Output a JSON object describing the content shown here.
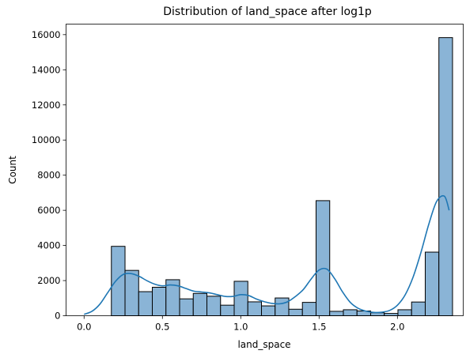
{
  "chart_data": {
    "type": "bar",
    "title": "Distribution of land_space after log1p",
    "xlabel": "land_space",
    "ylabel": "Count",
    "xlim": [
      -0.115,
      2.42
    ],
    "ylim": [
      0,
      16600
    ],
    "xticks": [
      0.0,
      0.5,
      1.0,
      1.5,
      2.0
    ],
    "xtick_labels": [
      "0.0",
      "0.5",
      "1.0",
      "1.5",
      "2.0"
    ],
    "yticks": [
      0,
      2000,
      4000,
      6000,
      8000,
      10000,
      12000,
      14000,
      16000
    ],
    "ytick_labels": [
      "0",
      "2000",
      "4000",
      "6000",
      "8000",
      "10000",
      "12000",
      "14000",
      "16000"
    ],
    "grid": false,
    "bin_edges": [
      0.0,
      0.0871,
      0.1742,
      0.2613,
      0.3484,
      0.4355,
      0.5226,
      0.6097,
      0.6968,
      0.7839,
      0.871,
      0.9581,
      1.0452,
      1.1323,
      1.2194,
      1.3065,
      1.3936,
      1.4807,
      1.5678,
      1.6549,
      1.742,
      1.8291,
      1.9162,
      2.0033,
      2.0904,
      2.1775,
      2.2646,
      2.3517
    ],
    "values": [
      0,
      0,
      3950,
      2580,
      1370,
      1620,
      2050,
      960,
      1270,
      1110,
      600,
      1960,
      790,
      560,
      1010,
      370,
      760,
      6550,
      250,
      340,
      270,
      170,
      130,
      340,
      780,
      3620,
      15830
    ],
    "kde": {
      "x": [
        0.0,
        0.05,
        0.1,
        0.15,
        0.2,
        0.25,
        0.3,
        0.35,
        0.4,
        0.45,
        0.5,
        0.55,
        0.6,
        0.65,
        0.7,
        0.75,
        0.8,
        0.85,
        0.9,
        0.95,
        1.0,
        1.05,
        1.1,
        1.15,
        1.2,
        1.25,
        1.3,
        1.35,
        1.4,
        1.45,
        1.5,
        1.55,
        1.6,
        1.65,
        1.7,
        1.75,
        1.8,
        1.85,
        1.9,
        1.95,
        2.0,
        2.05,
        2.1,
        2.15,
        2.2,
        2.25,
        2.3,
        2.33
      ],
      "y": [
        80,
        250,
        650,
        1300,
        1950,
        2350,
        2400,
        2250,
        2000,
        1800,
        1700,
        1750,
        1700,
        1550,
        1400,
        1350,
        1300,
        1200,
        1100,
        1100,
        1200,
        1150,
        950,
        800,
        700,
        680,
        800,
        1100,
        1500,
        2100,
        2600,
        2650,
        2100,
        1350,
        750,
        420,
        260,
        190,
        200,
        300,
        600,
        1200,
        2200,
        3600,
        5200,
        6500,
        6800,
        6000
      ]
    }
  }
}
